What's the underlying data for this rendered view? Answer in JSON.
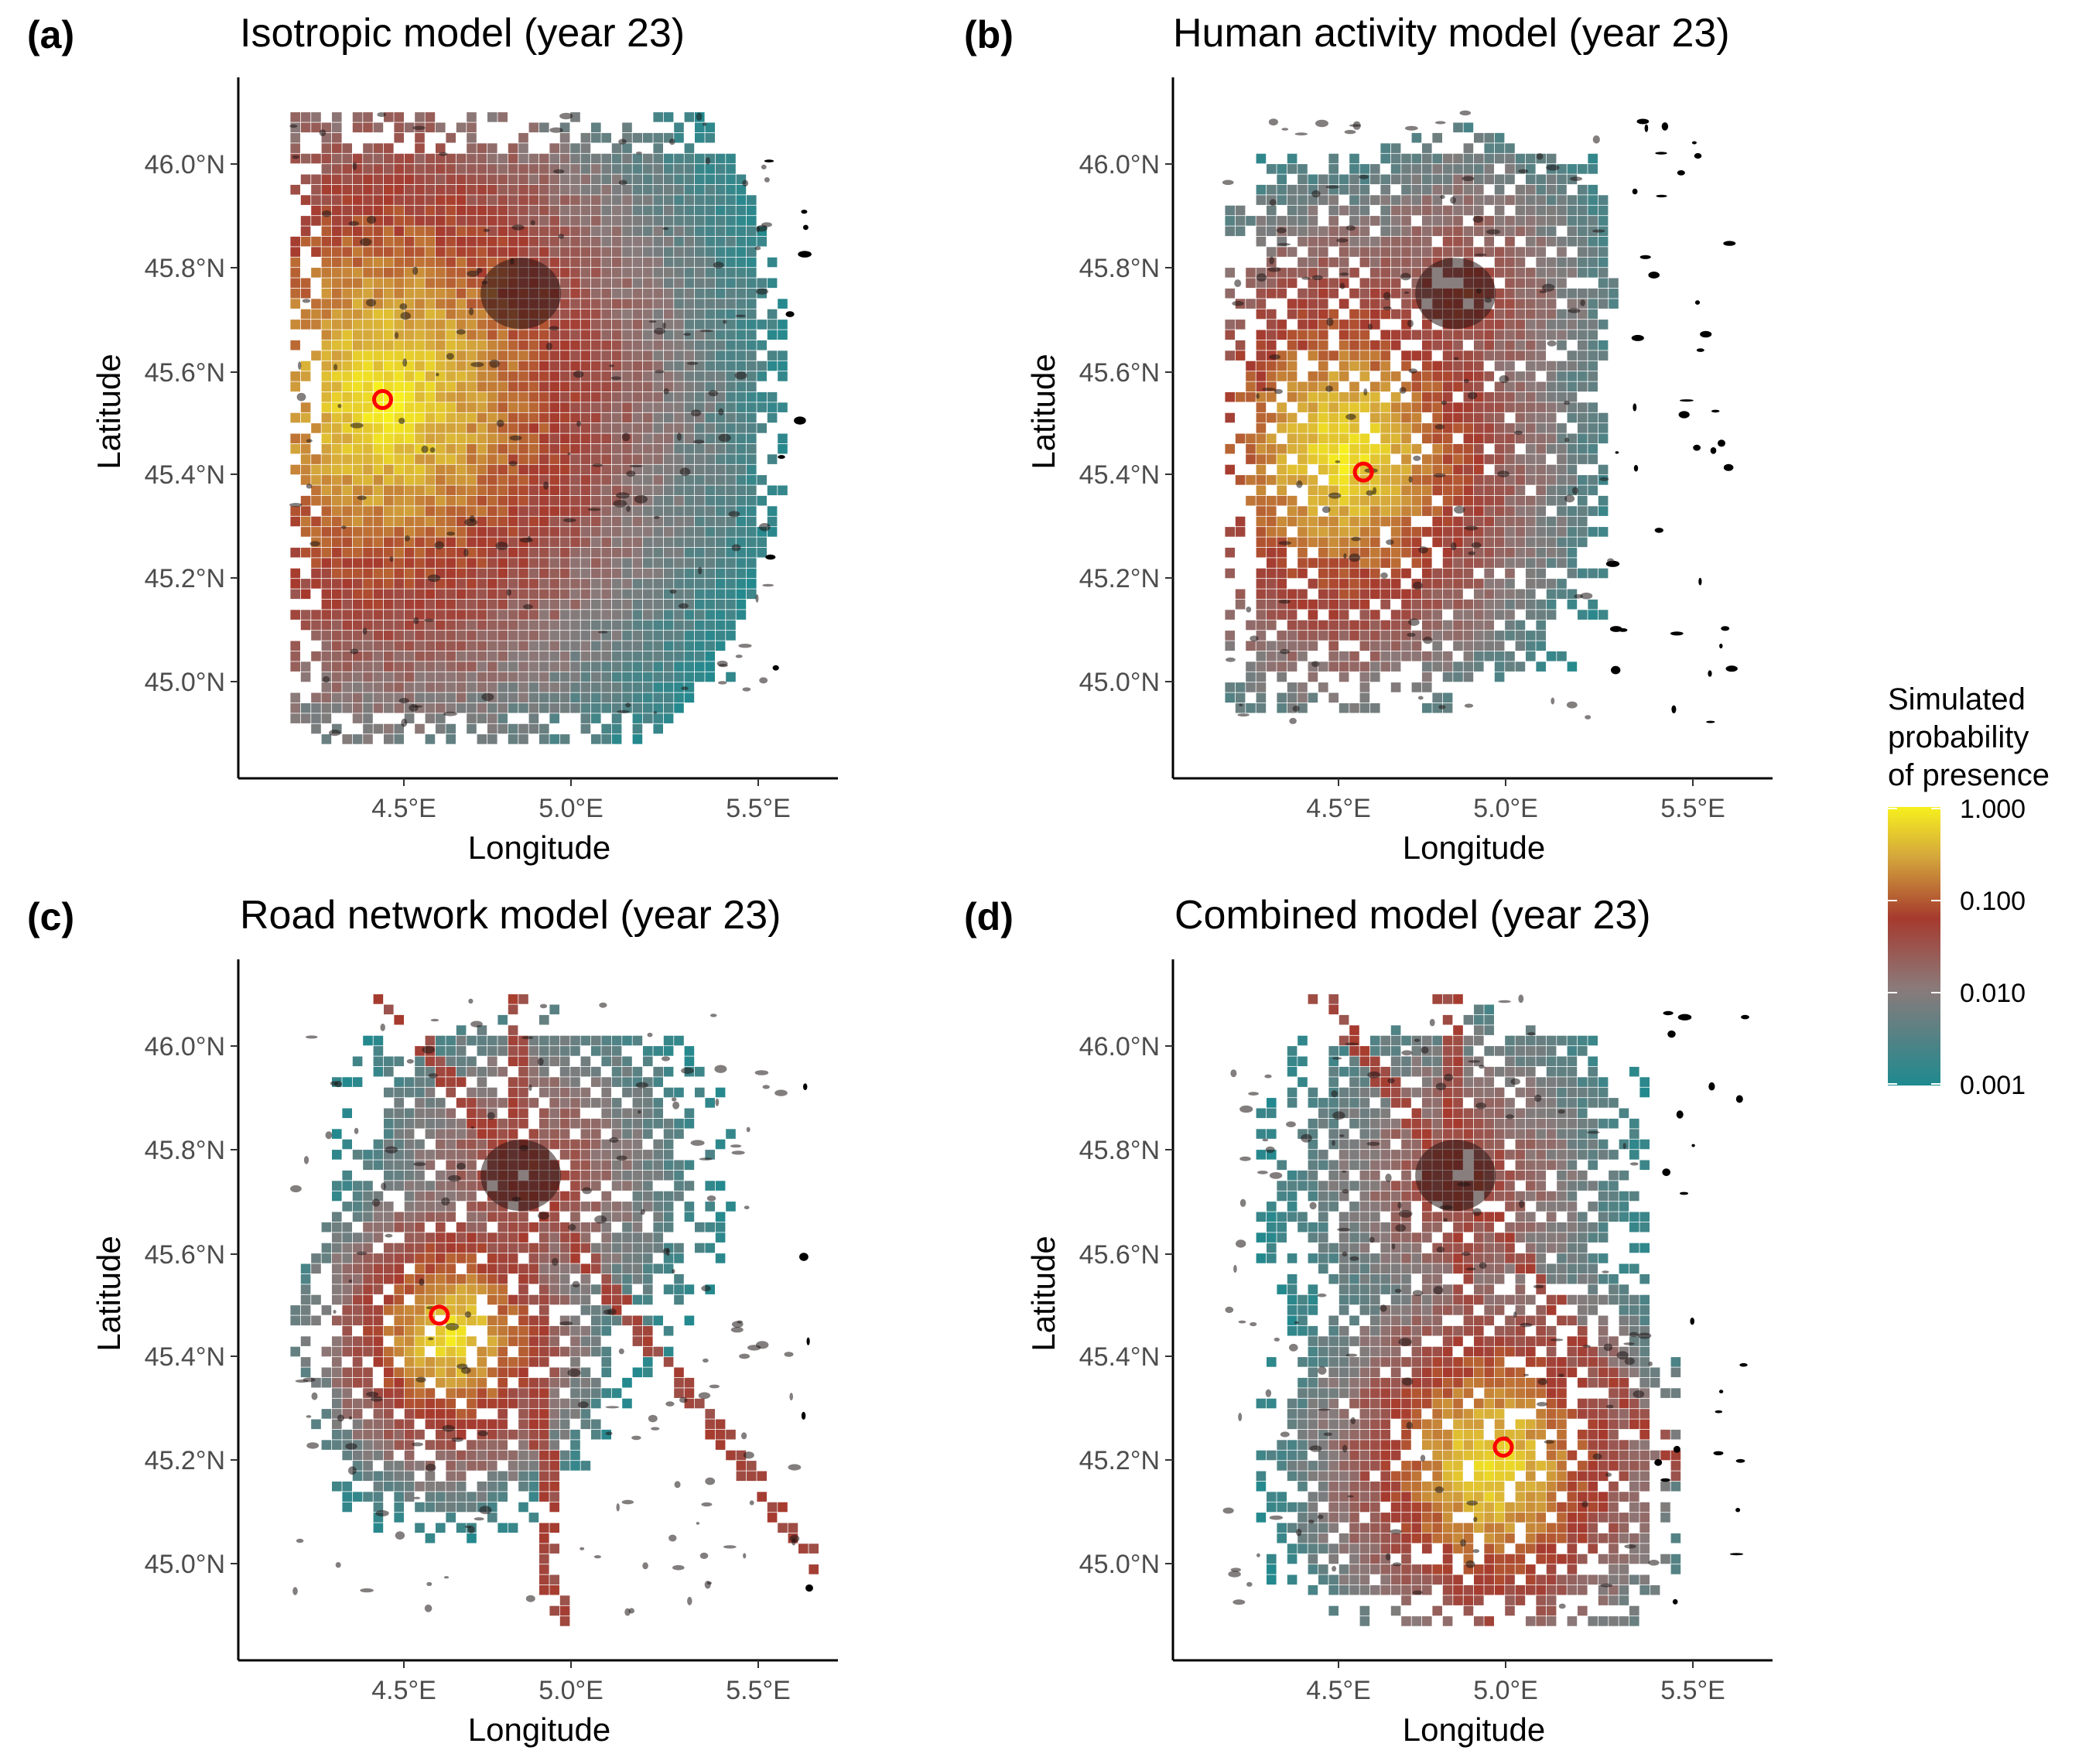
{
  "figure": {
    "legend": {
      "title_lines": [
        "Simulated",
        "probability",
        "of presence"
      ],
      "ticks": [
        "1.000",
        "0.100",
        "0.010",
        "0.001"
      ],
      "colors": [
        "#f7f01e",
        "#d4a63c",
        "#a63a2e",
        "#8b7a7a",
        "#1e8a8f"
      ]
    }
  },
  "chart_data": [
    {
      "type": "heatmap",
      "panel_label": "(a)",
      "title": "Isotropic model (year 23)",
      "xlabel": "Longitude",
      "ylabel": "Latitude",
      "x_ticks": [
        "4.5°E",
        "5.0°E",
        "5.5°E"
      ],
      "y_ticks": [
        "46.0°N",
        "45.8°N",
        "45.6°N",
        "45.4°N",
        "45.2°N",
        "45.0°N"
      ],
      "xlim": [
        4.12,
        5.7
      ],
      "ylim": [
        44.85,
        46.16
      ],
      "grid": false,
      "color_scale": "log10",
      "introduction_point": {
        "lon": 4.44,
        "lat": 45.545
      },
      "hotspot": {
        "lon": 4.44,
        "lat": 45.56,
        "spread": 0.22
      },
      "extent": {
        "lon": [
          4.18,
          5.58
        ],
        "lat": [
          44.88,
          46.1
        ]
      }
    },
    {
      "type": "heatmap",
      "panel_label": "(b)",
      "title": "Human activity model (year 23)",
      "xlabel": "Longitude",
      "ylabel": "Latitude",
      "x_ticks": [
        "4.5°E",
        "5.0°E",
        "5.5°E"
      ],
      "y_ticks": [
        "46.0°N",
        "45.8°N",
        "45.6°N",
        "45.4°N",
        "45.2°N",
        "45.0°N"
      ],
      "xlim": [
        4.12,
        5.7
      ],
      "ylim": [
        44.85,
        46.16
      ],
      "grid": false,
      "color_scale": "log10",
      "introduction_point": {
        "lon": 4.57,
        "lat": 45.405
      },
      "hotspot": {
        "lon": 4.5,
        "lat": 45.45,
        "spread": 0.16
      },
      "extent": {
        "lon": [
          4.18,
          5.32
        ],
        "lat": [
          44.95,
          46.1
        ]
      }
    },
    {
      "type": "heatmap",
      "panel_label": "(c)",
      "title": "Road network model (year 23)",
      "xlabel": "Longitude",
      "ylabel": "Latitude",
      "x_ticks": [
        "4.5°E",
        "5.0°E",
        "5.5°E"
      ],
      "y_ticks": [
        "46.0°N",
        "45.8°N",
        "45.6°N",
        "45.4°N",
        "45.2°N",
        "45.0°N"
      ],
      "xlim": [
        4.12,
        5.7
      ],
      "ylim": [
        44.85,
        46.16
      ],
      "grid": false,
      "color_scale": "log10",
      "introduction_point": {
        "lon": 4.6,
        "lat": 45.48
      },
      "hotspot": {
        "lon": 4.62,
        "lat": 45.45,
        "spread": 0.1
      },
      "extent": {
        "lon": [
          4.18,
          5.66
        ],
        "lat": [
          44.88,
          46.1
        ]
      }
    },
    {
      "type": "heatmap",
      "panel_label": "(d)",
      "title": "Combined model (year 23)",
      "xlabel": "Longitude",
      "ylabel": "Latitude",
      "x_ticks": [
        "4.5°E",
        "5.0°E",
        "5.5°E"
      ],
      "y_ticks": [
        "46.0°N",
        "45.8°N",
        "45.6°N",
        "45.4°N",
        "45.2°N",
        "45.0°N"
      ],
      "xlim": [
        4.12,
        5.7
      ],
      "ylim": [
        44.85,
        46.16
      ],
      "grid": false,
      "color_scale": "log10",
      "introduction_point": {
        "lon": 4.965,
        "lat": 45.225
      },
      "hotspot": {
        "lon": 4.92,
        "lat": 45.2,
        "spread": 0.13
      },
      "extent": {
        "lon": [
          4.18,
          5.45
        ],
        "lat": [
          44.88,
          46.1
        ]
      }
    }
  ]
}
